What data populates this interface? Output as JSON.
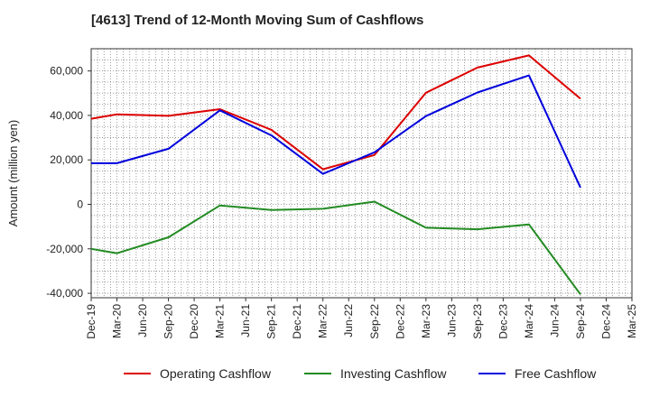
{
  "chart_data": {
    "type": "line",
    "title": "[4613]  Trend of 12-Month Moving Sum of Cashflows",
    "ylabel": "Amount (million yen)",
    "xlabel": "",
    "categories": [
      "Dec-19",
      "Mar-20",
      "Jun-20",
      "Sep-20",
      "Dec-20",
      "Mar-21",
      "Jun-21",
      "Sep-21",
      "Dec-21",
      "Mar-22",
      "Jun-22",
      "Sep-22",
      "Dec-22",
      "Mar-23",
      "Jun-23",
      "Sep-23",
      "Dec-23",
      "Mar-24",
      "Jun-24",
      "Sep-24",
      "Dec-24",
      "Mar-25"
    ],
    "ylim": [
      -42000,
      70000
    ],
    "yticks": [
      -40000,
      -20000,
      0,
      20000,
      40000,
      60000
    ],
    "ytick_labels": [
      "-40,000",
      "-20,000",
      "0",
      "20,000",
      "40,000",
      "60,000"
    ],
    "grid": true,
    "legend_position": "bottom",
    "series": [
      {
        "name": "Operating Cashflow",
        "color": "#dd0000",
        "values": [
          38500,
          40500,
          null,
          39800,
          null,
          42800,
          null,
          33500,
          null,
          15800,
          null,
          22200,
          null,
          50200,
          null,
          61500,
          null,
          67000,
          null,
          47500,
          null,
          null
        ]
      },
      {
        "name": "Investing Cashflow",
        "color": "#228b22",
        "values": [
          -20000,
          -22000,
          null,
          -14800,
          null,
          -500,
          null,
          -2500,
          null,
          -2000,
          null,
          1200,
          null,
          -10500,
          null,
          -11200,
          null,
          -9000,
          null,
          -40500,
          null,
          null
        ]
      },
      {
        "name": "Free Cashflow",
        "color": "#0000dd",
        "values": [
          18500,
          18500,
          null,
          25000,
          null,
          42300,
          null,
          31000,
          null,
          13700,
          null,
          23400,
          null,
          39700,
          null,
          50300,
          null,
          58000,
          null,
          7500,
          null,
          null
        ]
      }
    ]
  }
}
